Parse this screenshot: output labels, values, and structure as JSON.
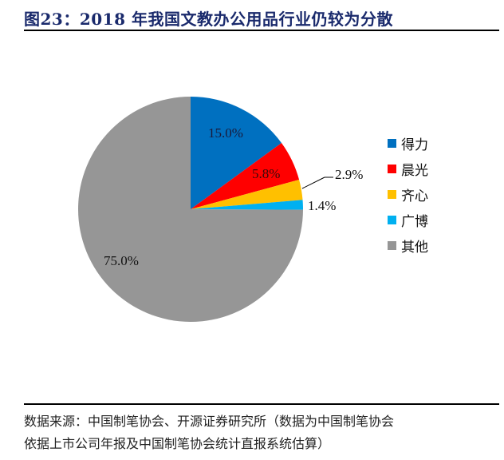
{
  "header": {
    "title": "图23：2018 年我国文教办公用品行业仍较为分散"
  },
  "chart_data": {
    "type": "pie",
    "title": "2018 年我国文教办公用品行业仍较为分散",
    "series": [
      {
        "name": "得力",
        "value": 15.0,
        "label": "15.0%",
        "color": "#0070C0"
      },
      {
        "name": "晨光",
        "value": 5.8,
        "label": "5.8%",
        "color": "#FF0000"
      },
      {
        "name": "齐心",
        "value": 2.9,
        "label": "2.9%",
        "color": "#FFC000"
      },
      {
        "name": "广博",
        "value": 1.4,
        "label": "1.4%",
        "color": "#00B0F0"
      },
      {
        "name": "其他",
        "value": 75.0,
        "label": "75.0%",
        "color": "#969696"
      }
    ],
    "legend_position": "right",
    "start_angle": "12 o'clock, clockwise"
  },
  "legend": {
    "items": [
      {
        "label": "得力",
        "color": "#0070C0"
      },
      {
        "label": "晨光",
        "color": "#FF0000"
      },
      {
        "label": "齐心",
        "color": "#FFC000"
      },
      {
        "label": "广博",
        "color": "#00B0F0"
      },
      {
        "label": "其他",
        "color": "#969696"
      }
    ]
  },
  "labels": {
    "deli": "15.0%",
    "chenguang": "5.8%",
    "qixin": "2.9%",
    "guangbo": "1.4%",
    "other": "75.0%"
  },
  "source": {
    "line1": "数据来源：中国制笔协会、开源证券研究所（数据为中国制笔协会",
    "line2": "依据上市公司年报及中国制笔协会统计直报系统估算）"
  }
}
